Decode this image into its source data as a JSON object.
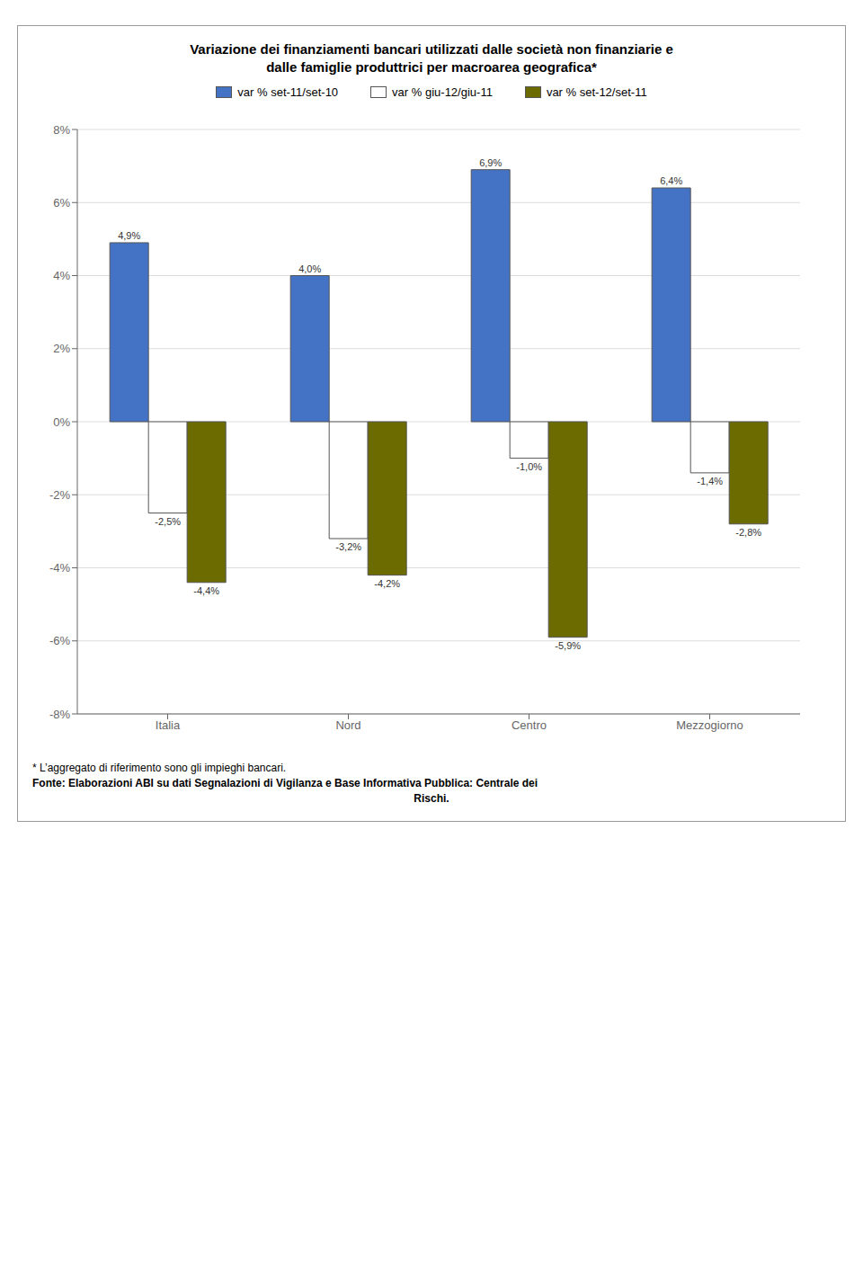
{
  "chart_data": {
    "type": "bar",
    "title": "Variazione dei finanziamenti bancari utilizzati dalle società non finanziarie e",
    "subtitle": "dalle famiglie produttrici per macroarea geografica*",
    "categories": [
      "Italia",
      "Nord",
      "Centro",
      "Mezzogiorno"
    ],
    "series": [
      {
        "name": "var % set-11/set-10",
        "color": "#4472C4",
        "values": [
          4.9,
          4.0,
          6.9,
          6.4
        ],
        "value_labels": [
          "4,9%",
          "4,0%",
          "6,9%",
          "6,4%"
        ]
      },
      {
        "name": "var % giu-12/giu-11",
        "color": "#ffffff",
        "values": [
          -2.5,
          -3.2,
          -1.0,
          -1.4
        ],
        "value_labels": [
          "-2,5%",
          "-3,2%",
          "-1,0%",
          "-1,4%"
        ]
      },
      {
        "name": "var % set-12/set-11",
        "color": "#6b6b00",
        "values": [
          -4.4,
          -4.2,
          -5.9,
          -2.8
        ],
        "value_labels": [
          "-4,4%",
          "-4,2%",
          "-5,9%",
          "-2,8%"
        ]
      }
    ],
    "ylim": [
      -8,
      8
    ],
    "yticks": [
      {
        "value": -8,
        "label": "-8%"
      },
      {
        "value": -6,
        "label": "-6%"
      },
      {
        "value": -4,
        "label": "-4%"
      },
      {
        "value": -2,
        "label": "-2%"
      },
      {
        "value": 0,
        "label": "0%"
      },
      {
        "value": 2,
        "label": "2%"
      },
      {
        "value": 4,
        "label": "4%"
      },
      {
        "value": 6,
        "label": "6%"
      },
      {
        "value": 8,
        "label": "8%"
      }
    ],
    "grid": true,
    "legend": "top",
    "data_labels": true,
    "annotations": [
      "* L’aggregato di riferimento sono gli impieghi bancari.",
      "Fonte: Elaborazioni ABI su dati Segnalazioni di Vigilanza e Base Informativa Pubblica: Centrale dei",
      "Rischi."
    ]
  }
}
